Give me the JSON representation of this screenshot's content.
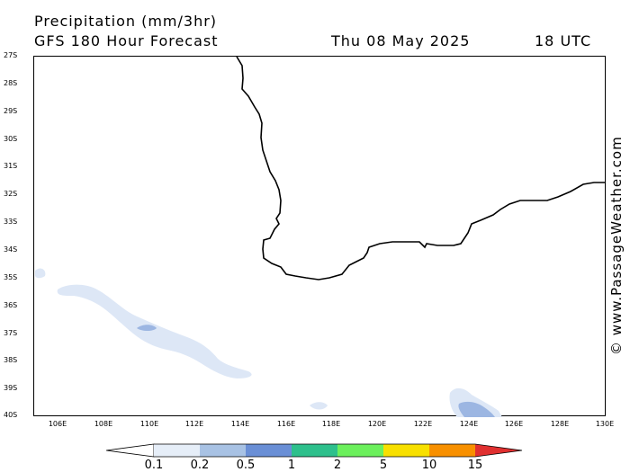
{
  "header": {
    "title": "Precipitation (mm/3hr)",
    "model": "GFS 180 Hour Forecast",
    "date": "Thu 08 May 2025",
    "time": "18 UTC"
  },
  "credit": "© www.PassageWeather.com",
  "axes": {
    "lat_labels": [
      "27S",
      "28S",
      "29S",
      "30S",
      "31S",
      "32S",
      "33S",
      "34S",
      "35S",
      "36S",
      "37S",
      "38S",
      "39S",
      "40S"
    ],
    "lon_labels": [
      "106E",
      "108E",
      "110E",
      "112E",
      "114E",
      "116E",
      "118E",
      "120E",
      "122E",
      "124E",
      "126E",
      "128E",
      "130E"
    ]
  },
  "legend": {
    "labels": [
      "0.1",
      "0.2",
      "0.5",
      "1",
      "2",
      "5",
      "10",
      "15"
    ],
    "colors": [
      "#e6eef8",
      "#a8c2e4",
      "#6a8fd6",
      "#2ec08c",
      "#6cf05c",
      "#f8e000",
      "#f89000",
      "#e03030"
    ]
  },
  "colors": {
    "coast": "#000000",
    "precip_light": "#dde7f6",
    "precip_mid": "#9cb6e2"
  }
}
